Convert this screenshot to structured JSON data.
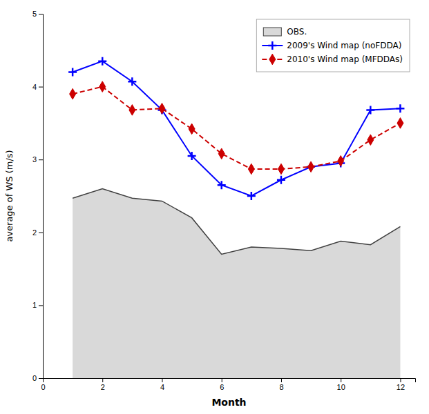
{
  "chart_data": {
    "type": "line",
    "xlabel": "Month",
    "ylabel": "average of WS (m/s)",
    "x": [
      1,
      2,
      3,
      4,
      5,
      6,
      7,
      8,
      9,
      10,
      11,
      12
    ],
    "series": [
      {
        "name": "OBS.",
        "type": "area",
        "color": "#404040",
        "values": [
          2.47,
          2.6,
          2.47,
          2.43,
          2.2,
          1.7,
          1.8,
          1.78,
          1.75,
          1.88,
          1.83,
          2.08
        ]
      },
      {
        "name": "2009's Wind map (noFDDA)",
        "type": "line",
        "color": "#0000ff",
        "marker": "plus",
        "line_style": "solid",
        "values": [
          4.2,
          4.35,
          4.07,
          3.68,
          3.05,
          2.65,
          2.5,
          2.72,
          2.9,
          2.95,
          3.68,
          3.7
        ]
      },
      {
        "name": "2010's Wind map (MFDDAs)",
        "type": "line",
        "color": "#cc0000",
        "marker": "diamond",
        "line_style": "dashed",
        "values": [
          3.9,
          4.0,
          3.68,
          3.7,
          3.42,
          3.08,
          2.87,
          2.87,
          2.9,
          2.98,
          3.27,
          3.5
        ]
      }
    ],
    "xlim": [
      0,
      12.5
    ],
    "xticks": [
      0,
      2,
      4,
      6,
      8,
      10,
      12
    ],
    "ylim": [
      0,
      5
    ],
    "yticks": [
      0,
      1,
      2,
      3,
      4,
      5
    ],
    "grid": false,
    "legend": "upper right"
  }
}
